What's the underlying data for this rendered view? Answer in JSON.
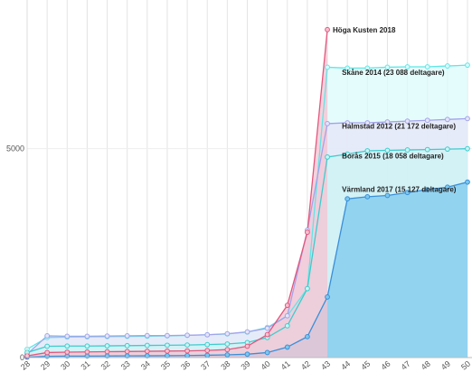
{
  "chart_data": {
    "type": "area",
    "title": "",
    "xlabel": "",
    "ylabel": "",
    "x_ticks": [
      28,
      29,
      30,
      31,
      32,
      33,
      34,
      35,
      36,
      37,
      38,
      39,
      40,
      41,
      42,
      43,
      44,
      45,
      46,
      47,
      48,
      49,
      50
    ],
    "y_ticks": [
      0,
      5000
    ],
    "xlim": [
      28,
      50
    ],
    "ylim": [
      0,
      8300
    ],
    "grid": "vertical",
    "series": [
      {
        "name": "Skåne 2014 (23 088 deltagare)",
        "color": "#5fe6e6",
        "fill": "#dcfbfb",
        "points": [
          [
            28,
            200
          ],
          [
            29,
            480
          ],
          [
            30,
            490
          ],
          [
            31,
            495
          ],
          [
            32,
            500
          ],
          [
            33,
            505
          ],
          [
            34,
            510
          ],
          [
            35,
            520
          ],
          [
            36,
            530
          ],
          [
            37,
            545
          ],
          [
            38,
            565
          ],
          [
            39,
            610
          ],
          [
            40,
            720
          ],
          [
            41,
            1000
          ],
          [
            42,
            1650
          ],
          [
            43,
            6950
          ],
          [
            44,
            6930
          ],
          [
            45,
            6930
          ],
          [
            46,
            6950
          ],
          [
            47,
            6960
          ],
          [
            48,
            6960
          ],
          [
            49,
            6980
          ],
          [
            50,
            7000
          ]
        ]
      },
      {
        "name": "Halmstad 2012 (21 172 deltagare)",
        "color": "#a3a3ea",
        "fill": "#e5e5f8",
        "points": [
          [
            28,
            80
          ],
          [
            29,
            520
          ],
          [
            30,
            510
          ],
          [
            31,
            510
          ],
          [
            32,
            515
          ],
          [
            33,
            520
          ],
          [
            34,
            525
          ],
          [
            35,
            525
          ],
          [
            36,
            535
          ],
          [
            37,
            545
          ],
          [
            38,
            570
          ],
          [
            39,
            615
          ],
          [
            40,
            700
          ],
          [
            41,
            1000
          ],
          [
            42,
            3050
          ],
          [
            43,
            5600
          ],
          [
            44,
            5620
          ],
          [
            45,
            5620
          ],
          [
            46,
            5640
          ],
          [
            47,
            5660
          ],
          [
            48,
            5680
          ],
          [
            49,
            5700
          ],
          [
            50,
            5720
          ]
        ]
      },
      {
        "name": "Borås 2015 (18 058 deltagare)",
        "color": "#3ecccc",
        "fill": "#cbf4f4",
        "points": [
          [
            28,
            120
          ],
          [
            29,
            270
          ],
          [
            30,
            275
          ],
          [
            31,
            275
          ],
          [
            32,
            280
          ],
          [
            33,
            285
          ],
          [
            34,
            290
          ],
          [
            35,
            295
          ],
          [
            36,
            300
          ],
          [
            37,
            310
          ],
          [
            38,
            325
          ],
          [
            39,
            360
          ],
          [
            40,
            480
          ],
          [
            41,
            760
          ],
          [
            42,
            1650
          ],
          [
            43,
            4800
          ],
          [
            44,
            4870
          ],
          [
            45,
            4950
          ],
          [
            46,
            4960
          ],
          [
            47,
            4970
          ],
          [
            48,
            4980
          ],
          [
            49,
            4990
          ],
          [
            50,
            5000
          ]
        ]
      },
      {
        "name": "Värmland 2017 (15 127 deltagare)",
        "color": "#3b8fd8",
        "fill": "#7cc8ee",
        "points": [
          [
            28,
            10
          ],
          [
            29,
            30
          ],
          [
            30,
            35
          ],
          [
            31,
            35
          ],
          [
            32,
            38
          ],
          [
            33,
            40
          ],
          [
            34,
            42
          ],
          [
            35,
            45
          ],
          [
            36,
            48
          ],
          [
            37,
            55
          ],
          [
            38,
            65
          ],
          [
            39,
            80
          ],
          [
            40,
            120
          ],
          [
            41,
            250
          ],
          [
            42,
            500
          ],
          [
            43,
            1450
          ],
          [
            44,
            3800
          ],
          [
            45,
            3850
          ],
          [
            46,
            3880
          ],
          [
            47,
            3950
          ],
          [
            48,
            4020
          ],
          [
            49,
            4080
          ],
          [
            50,
            4200
          ]
        ]
      },
      {
        "name": "Höga Kusten 2018",
        "color": "#e2577d",
        "fill": "#f4c3d2",
        "points": [
          [
            28,
            40
          ],
          [
            29,
            120
          ],
          [
            30,
            130
          ],
          [
            31,
            135
          ],
          [
            32,
            140
          ],
          [
            33,
            145
          ],
          [
            34,
            150
          ],
          [
            35,
            155
          ],
          [
            36,
            160
          ],
          [
            37,
            170
          ],
          [
            38,
            190
          ],
          [
            39,
            270
          ],
          [
            40,
            550
          ],
          [
            41,
            1250
          ],
          [
            42,
            3000
          ],
          [
            43,
            7850
          ]
        ]
      }
    ]
  }
}
